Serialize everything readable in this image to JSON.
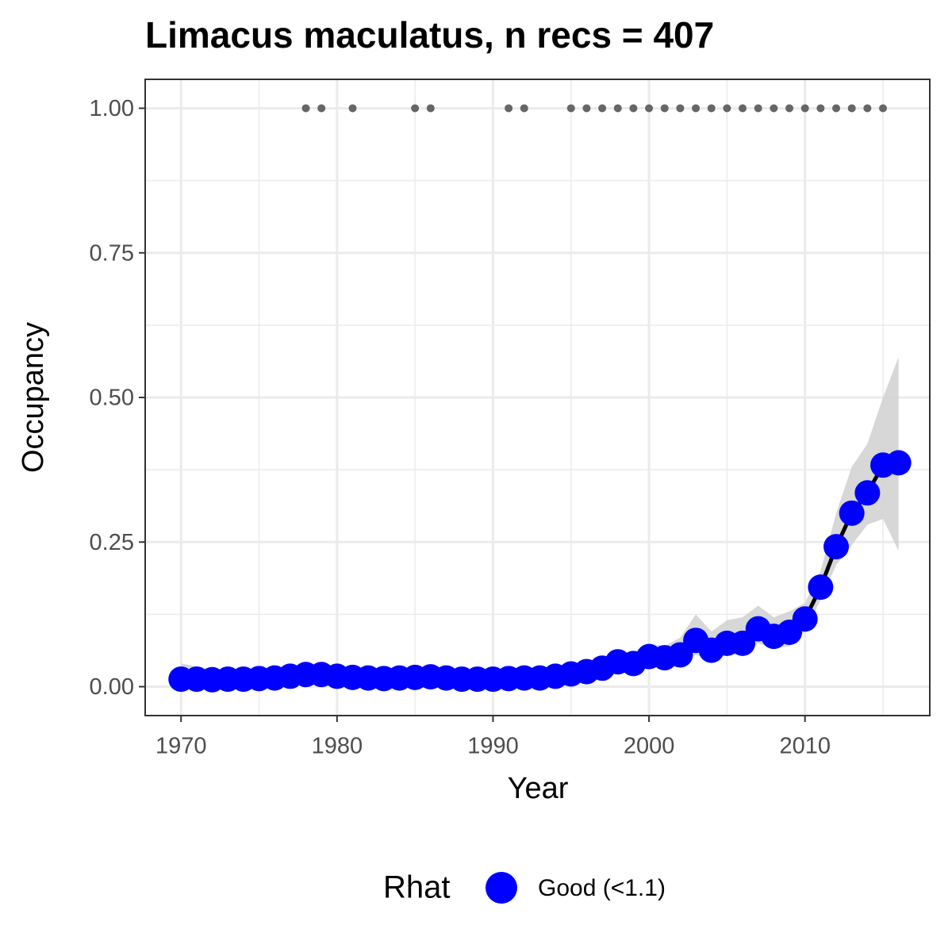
{
  "chart_data": {
    "type": "line",
    "title": "Limacus maculatus, n recs = 407",
    "x_label": "Year",
    "y_label": "Occupancy",
    "x": [
      1970,
      1971,
      1972,
      1973,
      1974,
      1975,
      1976,
      1977,
      1978,
      1979,
      1980,
      1981,
      1982,
      1983,
      1984,
      1985,
      1986,
      1987,
      1988,
      1989,
      1990,
      1991,
      1992,
      1993,
      1994,
      1995,
      1996,
      1997,
      1998,
      1999,
      2000,
      2001,
      2002,
      2003,
      2004,
      2005,
      2006,
      2007,
      2008,
      2009,
      2010,
      2011,
      2012,
      2013,
      2014,
      2015,
      2016
    ],
    "series": [
      {
        "name": "Good (<1.1)",
        "color": "#0000ff",
        "values": [
          0.013,
          0.013,
          0.012,
          0.013,
          0.013,
          0.014,
          0.015,
          0.018,
          0.021,
          0.021,
          0.018,
          0.016,
          0.015,
          0.014,
          0.015,
          0.016,
          0.017,
          0.015,
          0.013,
          0.013,
          0.013,
          0.014,
          0.015,
          0.015,
          0.018,
          0.022,
          0.026,
          0.032,
          0.043,
          0.04,
          0.052,
          0.05,
          0.055,
          0.08,
          0.063,
          0.075,
          0.075,
          0.1,
          0.087,
          0.094,
          0.117,
          0.172,
          0.242,
          0.3,
          0.335,
          0.383,
          0.387
        ],
        "upper": [
          0.04,
          0.035,
          0.03,
          0.03,
          0.03,
          0.03,
          0.032,
          0.035,
          0.04,
          0.04,
          0.035,
          0.032,
          0.03,
          0.03,
          0.03,
          0.032,
          0.033,
          0.03,
          0.028,
          0.028,
          0.028,
          0.029,
          0.03,
          0.03,
          0.033,
          0.037,
          0.042,
          0.05,
          0.06,
          0.058,
          0.075,
          0.07,
          0.085,
          0.125,
          0.095,
          0.115,
          0.12,
          0.14,
          0.12,
          0.13,
          0.145,
          0.2,
          0.3,
          0.38,
          0.42,
          0.5,
          0.57
        ],
        "lower": [
          0.005,
          0.005,
          0.004,
          0.005,
          0.005,
          0.006,
          0.007,
          0.008,
          0.01,
          0.01,
          0.008,
          0.007,
          0.007,
          0.006,
          0.007,
          0.007,
          0.008,
          0.007,
          0.006,
          0.006,
          0.006,
          0.006,
          0.007,
          0.007,
          0.009,
          0.012,
          0.015,
          0.02,
          0.03,
          0.028,
          0.035,
          0.035,
          0.04,
          0.055,
          0.045,
          0.055,
          0.055,
          0.075,
          0.065,
          0.07,
          0.095,
          0.15,
          0.21,
          0.245,
          0.28,
          0.29,
          0.235
        ]
      }
    ],
    "records": {
      "color": "#666666",
      "x": [
        1978,
        1979,
        1981,
        1985,
        1986,
        1991,
        1992,
        1995,
        1996,
        1997,
        1998,
        1999,
        2000,
        2001,
        2002,
        2003,
        2004,
        2005,
        2006,
        2007,
        2008,
        2009,
        2010,
        2011,
        2012,
        2013,
        2014,
        2015
      ],
      "values": [
        1,
        1,
        1,
        1,
        1,
        1,
        1,
        1,
        1,
        1,
        1,
        1,
        1,
        1,
        1,
        1,
        1,
        1,
        1,
        1,
        1,
        1,
        1,
        1,
        1,
        1,
        1,
        1
      ]
    },
    "band_color": "#d3d3d3",
    "line_color": "#000000",
    "legend_title": "Rhat",
    "legend_position": "bottom",
    "xlim": [
      1967.7,
      2018
    ],
    "ylim": [
      -0.05,
      1.05
    ],
    "xticks": [
      1970,
      1980,
      1990,
      2000,
      2010
    ],
    "yticks": [
      {
        "value": 0,
        "label": "0.00"
      },
      {
        "value": 0.25,
        "label": "0.25"
      },
      {
        "value": 0.5,
        "label": "0.50"
      },
      {
        "value": 0.75,
        "label": "0.75"
      },
      {
        "value": 1,
        "label": "1.00"
      }
    ],
    "xminor": [
      1975,
      1985,
      1995,
      2005,
      2015
    ],
    "yminor": [
      0.125,
      0.375,
      0.625,
      0.875
    ],
    "grid": true
  }
}
